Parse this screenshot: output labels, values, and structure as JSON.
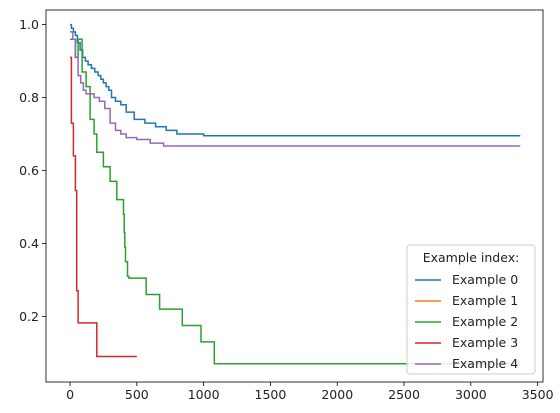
{
  "chart_data": {
    "type": "line",
    "step": "post",
    "xlim": [
      -180,
      3540
    ],
    "ylim": [
      0.02,
      1.04
    ],
    "xticks": [
      0,
      500,
      1000,
      1500,
      2000,
      2500,
      3000,
      3500
    ],
    "xtick_labels": [
      "0",
      "500",
      "1000",
      "1500",
      "2000",
      "2500",
      "3000",
      "3500"
    ],
    "yticks": [
      0.2,
      0.4,
      0.6,
      0.8,
      1.0
    ],
    "ytick_labels": [
      "0.2",
      "0.4",
      "0.6",
      "0.8",
      "1.0"
    ],
    "grid": false,
    "legend": {
      "title": "Example index:",
      "placement": "lower right"
    },
    "series": [
      {
        "name": "Example 0",
        "color": "#1f77b4",
        "x": [
          0,
          10,
          25,
          40,
          55,
          75,
          95,
          115,
          135,
          160,
          185,
          210,
          230,
          250,
          270,
          290,
          310,
          340,
          380,
          420,
          480,
          560,
          640,
          720,
          800,
          1000,
          3370
        ],
        "y": [
          1.0,
          0.99,
          0.98,
          0.97,
          0.95,
          0.93,
          0.91,
          0.9,
          0.89,
          0.88,
          0.87,
          0.86,
          0.85,
          0.84,
          0.83,
          0.82,
          0.8,
          0.79,
          0.78,
          0.76,
          0.74,
          0.73,
          0.72,
          0.71,
          0.7,
          0.695,
          0.695
        ]
      },
      {
        "name": "Example 1",
        "color": "#ff7f0e",
        "x": [],
        "y": []
      },
      {
        "name": "Example 2",
        "color": "#2ca02c",
        "x": [
          0,
          40,
          60,
          90,
          120,
          150,
          180,
          200,
          250,
          300,
          350,
          400,
          405,
          410,
          415,
          420,
          430,
          440,
          570,
          670,
          840,
          980,
          1080,
          3370
        ],
        "y": [
          0.96,
          0.91,
          0.96,
          0.87,
          0.83,
          0.74,
          0.7,
          0.65,
          0.61,
          0.57,
          0.52,
          0.48,
          0.43,
          0.39,
          0.35,
          0.35,
          0.31,
          0.305,
          0.26,
          0.22,
          0.175,
          0.13,
          0.07,
          0.07
        ]
      },
      {
        "name": "Example 3",
        "color": "#d62728",
        "x": [
          0,
          10,
          25,
          40,
          50,
          55,
          60,
          200,
          500
        ],
        "y": [
          0.91,
          0.73,
          0.64,
          0.545,
          0.27,
          0.27,
          0.182,
          0.09,
          0.09
        ]
      },
      {
        "name": "Example 4",
        "color": "#9467bd",
        "x": [
          0,
          20,
          40,
          60,
          80,
          100,
          120,
          140,
          180,
          220,
          260,
          300,
          340,
          380,
          420,
          500,
          600,
          700,
          3370
        ],
        "y": [
          0.98,
          0.96,
          0.91,
          0.86,
          0.84,
          0.82,
          0.81,
          0.81,
          0.8,
          0.79,
          0.77,
          0.73,
          0.71,
          0.7,
          0.69,
          0.685,
          0.675,
          0.667,
          0.667
        ]
      }
    ]
  }
}
